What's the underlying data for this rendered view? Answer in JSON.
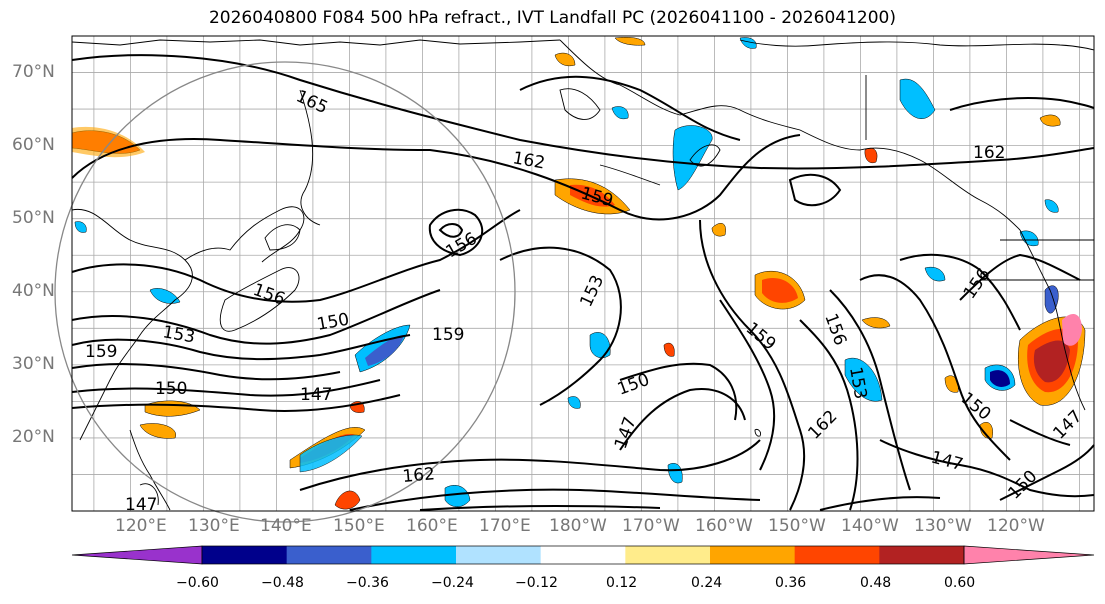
{
  "title": "2026040800 F084 500 hPa refract., IVT Landfall PC (2026041100 - 2026041200)",
  "map": {
    "lat_labels": [
      "70°N",
      "60°N",
      "50°N",
      "40°N",
      "30°N",
      "20°N"
    ],
    "lat_values": [
      70,
      60,
      50,
      40,
      30,
      20
    ],
    "lon_labels": [
      "120°E",
      "130°E",
      "140°E",
      "150°E",
      "160°E",
      "170°E",
      "180°W",
      "170°W",
      "160°W",
      "150°W",
      "140°W",
      "130°W",
      "120°W"
    ],
    "lat_range": [
      10,
      75
    ],
    "lon_range_east": [
      112,
      252
    ],
    "contour_labels": [
      "165",
      "162",
      "162",
      "159",
      "159",
      "159",
      "159",
      "156",
      "156",
      "156",
      "156",
      "153",
      "153",
      "153",
      "150",
      "150",
      "150",
      "150",
      "147",
      "147",
      "147",
      "147",
      "162",
      "162",
      "150",
      "147"
    ],
    "colors": {
      "coast": "#000000",
      "grid": "#aaaaaa",
      "circle": "#888888"
    }
  },
  "colorbar": {
    "ticks": [
      "−0.60",
      "−0.48",
      "−0.36",
      "−0.24",
      "−0.12",
      "0.12",
      "0.24",
      "0.36",
      "0.48",
      "0.60"
    ],
    "colors": [
      "#9932cc",
      "#00008b",
      "#3a5fcd",
      "#00bfff",
      "#b0e2ff",
      "#ffffff",
      "#ffec8b",
      "#ffa500",
      "#ff4500",
      "#b22222",
      "#ff82ab"
    ]
  }
}
